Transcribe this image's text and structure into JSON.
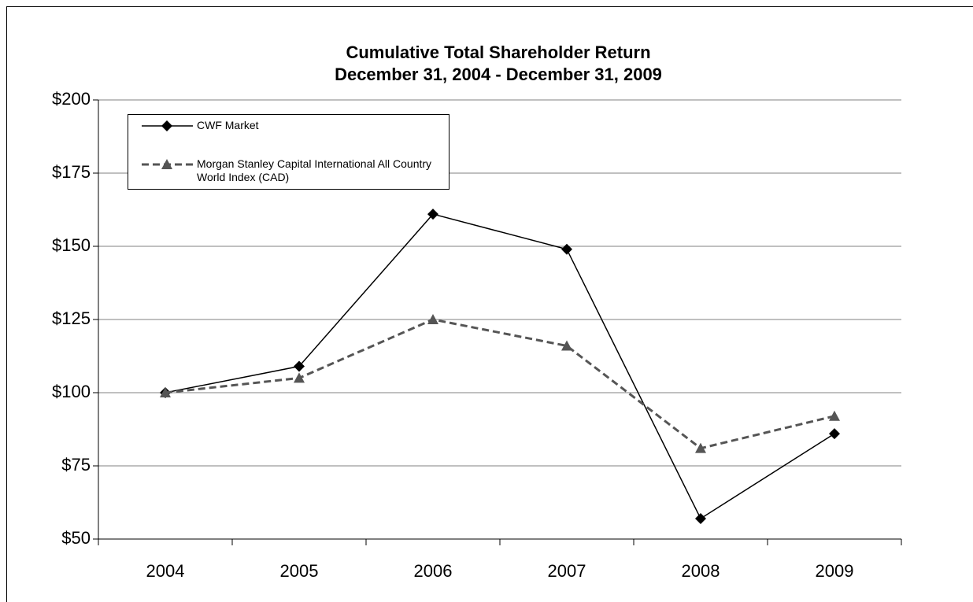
{
  "chart_data": {
    "type": "line",
    "title": "Cumulative Total Shareholder Return",
    "subtitle": "December 31, 2004 - December 31, 2009",
    "categories": [
      "2004",
      "2005",
      "2006",
      "2007",
      "2008",
      "2009"
    ],
    "series": [
      {
        "name": "CWF Market",
        "color": "#000000",
        "marker": "diamond",
        "dashed": false,
        "values": [
          100,
          109,
          161,
          149,
          57,
          86
        ]
      },
      {
        "name": "Morgan Stanley Capital International All Country World Index (CAD)",
        "color": "#555555",
        "marker": "triangle",
        "dashed": true,
        "values": [
          100,
          105,
          125,
          116,
          81,
          92
        ]
      }
    ],
    "ylim": [
      50,
      200
    ],
    "yticks": [
      {
        "value": 50,
        "label": "$50"
      },
      {
        "value": 75,
        "label": "$75"
      },
      {
        "value": 100,
        "label": "$100"
      },
      {
        "value": 125,
        "label": "$125"
      },
      {
        "value": 150,
        "label": "$150"
      },
      {
        "value": 175,
        "label": "$175"
      },
      {
        "value": 200,
        "label": "$200"
      }
    ],
    "grid": true,
    "legend": "upper-left"
  }
}
